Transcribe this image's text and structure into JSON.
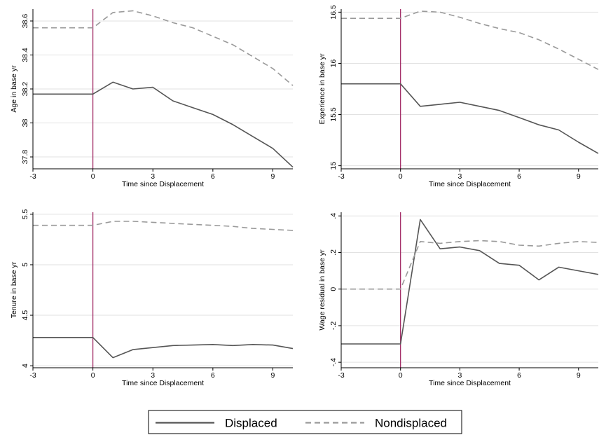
{
  "chart_data": [
    {
      "type": "line",
      "xlabel": "Time since Displacement",
      "ylabel": "Age in base yr",
      "x": [
        -3,
        -2,
        -1,
        0,
        1,
        2,
        3,
        4,
        5,
        6,
        7,
        8,
        9,
        10
      ],
      "xticks": [
        -3,
        0,
        3,
        6,
        9
      ],
      "xlim": [
        -3,
        10
      ],
      "ylim": [
        37.73,
        38.67
      ],
      "yticks": [
        37.8,
        38,
        38.2,
        38.4,
        38.6
      ],
      "ytick_labels": [
        "37.8",
        "38",
        "38.2",
        "38.4",
        "38.6"
      ],
      "event_line_x": 0,
      "series": [
        {
          "name": "Displaced",
          "values": [
            38.17,
            38.17,
            38.17,
            38.17,
            38.24,
            38.2,
            38.21,
            38.13,
            38.09,
            38.05,
            37.99,
            37.92,
            37.85,
            37.74
          ]
        },
        {
          "name": "Nondisplaced",
          "values": [
            38.56,
            38.56,
            38.56,
            38.56,
            38.65,
            38.66,
            38.63,
            38.59,
            38.56,
            38.51,
            38.46,
            38.39,
            38.32,
            38.22
          ]
        }
      ]
    },
    {
      "type": "line",
      "xlabel": "Time since Displacement",
      "ylabel": "Experience in base yr",
      "x": [
        -3,
        -2,
        -1,
        0,
        1,
        2,
        3,
        4,
        5,
        6,
        7,
        8,
        9,
        10
      ],
      "xticks": [
        -3,
        0,
        3,
        6,
        9
      ],
      "xlim": [
        -3,
        10
      ],
      "ylim": [
        14.97,
        16.53
      ],
      "yticks": [
        15,
        15.5,
        16,
        16.5
      ],
      "ytick_labels": [
        "15",
        "15.5",
        "16",
        "16.5"
      ],
      "event_line_x": 0,
      "series": [
        {
          "name": "Displaced",
          "values": [
            15.8,
            15.8,
            15.8,
            15.8,
            15.58,
            15.6,
            15.62,
            15.58,
            15.54,
            15.47,
            15.4,
            15.35,
            15.23,
            15.12
          ]
        },
        {
          "name": "Nondisplaced",
          "values": [
            16.44,
            16.44,
            16.44,
            16.44,
            16.51,
            16.5,
            16.45,
            16.39,
            16.34,
            16.3,
            16.23,
            16.14,
            16.04,
            15.94
          ]
        }
      ]
    },
    {
      "type": "line",
      "xlabel": "Time since Displacement",
      "ylabel": "Tenure in base yr",
      "x": [
        -3,
        -2,
        -1,
        0,
        1,
        2,
        3,
        4,
        5,
        6,
        7,
        8,
        9,
        10
      ],
      "xticks": [
        -3,
        0,
        3,
        6,
        9
      ],
      "xlim": [
        -3,
        10
      ],
      "ylim": [
        3.98,
        5.52
      ],
      "yticks": [
        4,
        4.5,
        5,
        5.5
      ],
      "ytick_labels": [
        "4",
        "4.5",
        "5",
        "5.5"
      ],
      "event_line_x": 0,
      "series": [
        {
          "name": "Displaced",
          "values": [
            4.28,
            4.28,
            4.28,
            4.28,
            4.08,
            4.16,
            4.18,
            4.2,
            4.205,
            4.21,
            4.2,
            4.21,
            4.205,
            4.17
          ]
        },
        {
          "name": "Nondisplaced",
          "values": [
            5.39,
            5.39,
            5.39,
            5.39,
            5.43,
            5.43,
            5.42,
            5.41,
            5.4,
            5.39,
            5.38,
            5.36,
            5.35,
            5.34
          ]
        }
      ]
    },
    {
      "type": "line",
      "xlabel": "Time since Displacement",
      "ylabel": "Wage residual in base yr",
      "x": [
        -3,
        -2,
        -1,
        0,
        1,
        2,
        3,
        4,
        5,
        6,
        7,
        8,
        9,
        10
      ],
      "xticks": [
        -3,
        0,
        3,
        6,
        9
      ],
      "xlim": [
        -3,
        10
      ],
      "ylim": [
        -0.43,
        0.42
      ],
      "yticks": [
        -0.4,
        -0.2,
        0,
        0.2,
        0.4
      ],
      "ytick_labels": [
        "-.4",
        "-.2",
        "0",
        ".2",
        ".4"
      ],
      "event_line_x": 0,
      "series": [
        {
          "name": "Displaced",
          "values": [
            -0.3,
            -0.3,
            -0.3,
            -0.3,
            0.38,
            0.22,
            0.23,
            0.21,
            0.14,
            0.13,
            0.05,
            0.12,
            0.1,
            0.08
          ]
        },
        {
          "name": "Nondisplaced",
          "values": [
            0.0,
            0.0,
            0.0,
            0.0,
            0.26,
            0.25,
            0.26,
            0.265,
            0.26,
            0.24,
            0.235,
            0.25,
            0.26,
            0.255
          ]
        }
      ]
    }
  ],
  "legend": {
    "items": [
      {
        "label": "Displaced",
        "color": "#555555",
        "dash": "solid"
      },
      {
        "label": "Nondisplaced",
        "color": "#9a9a9a",
        "dash": "dashed"
      }
    ]
  },
  "colors": {
    "displaced": "#555555",
    "nondisplaced": "#9a9a9a",
    "event_line": "#9b1b5a",
    "gridline": "#e2e2e2"
  }
}
